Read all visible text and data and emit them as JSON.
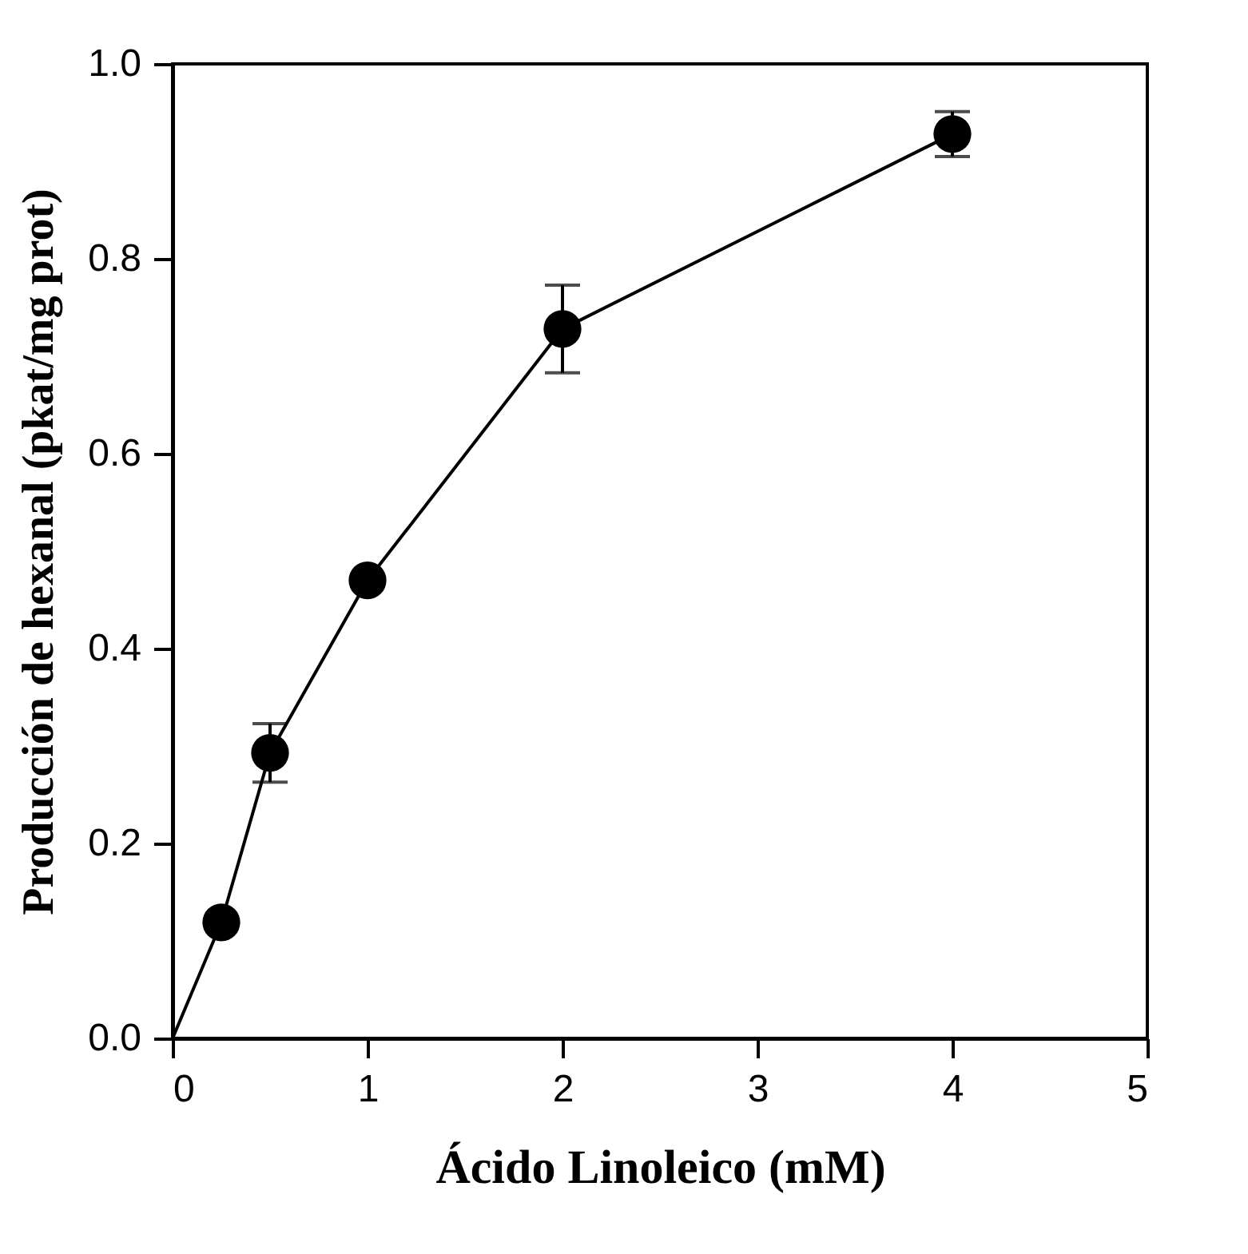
{
  "chart_data": {
    "type": "line",
    "xlabel": "Ácido Linoleico (mM)",
    "ylabel": "Producción de hexanal (pkat/mg prot)",
    "xlim": [
      0,
      5
    ],
    "xticks": [
      0,
      1,
      2,
      3,
      4,
      5
    ],
    "ylim": [
      0,
      1
    ],
    "yticks": [
      {
        "value": 0,
        "label": "0.0"
      },
      {
        "value": 0.2,
        "label": "0.2"
      },
      {
        "value": 0.4,
        "label": "0.4"
      },
      {
        "value": 0.6,
        "label": "0.6"
      },
      {
        "value": 0.8,
        "label": "0.8"
      },
      {
        "value": 1,
        "label": "1.0"
      }
    ],
    "series": [
      {
        "type": "line",
        "marker": "none",
        "color": "#000000",
        "x": [
          0,
          0.25,
          0.5,
          1,
          2,
          4
        ],
        "values": [
          0,
          0.119,
          0.293,
          0.47,
          0.728,
          0.928
        ]
      },
      {
        "type": "scatter",
        "marker": "circle",
        "color": "#000000",
        "x": [
          0.25,
          0.5,
          1,
          2,
          4
        ],
        "values": [
          0.119,
          0.293,
          0.47,
          0.728,
          0.928
        ],
        "errors": [
          null,
          0.03,
          null,
          0.045,
          0.023
        ]
      }
    ]
  }
}
